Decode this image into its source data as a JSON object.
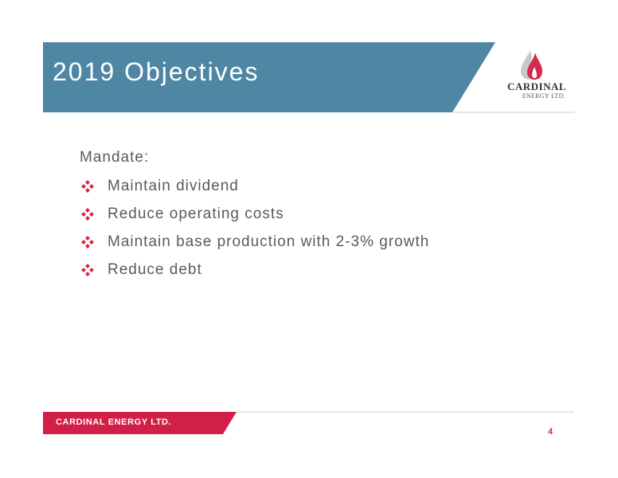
{
  "header": {
    "title": "2019 Objectives",
    "logo": {
      "name": "CARDINAL",
      "subname": "ENERGY LTD.",
      "icon": "flame-drop-icon"
    }
  },
  "content": {
    "lead": "Mandate:",
    "bullet_icon": "four-diamond-bullet-icon",
    "bullets": [
      "Maintain dividend",
      "Reduce operating costs",
      "Maintain base production with 2-3% growth",
      "Reduce debt"
    ]
  },
  "footer": {
    "company": "CARDINAL ENERGY LTD.",
    "page_number": "4"
  },
  "colors": {
    "title_band": "#4f86a3",
    "accent_red": "#d62a4a",
    "footer_band": "#d21f47",
    "body_text": "#5a5a5a"
  }
}
